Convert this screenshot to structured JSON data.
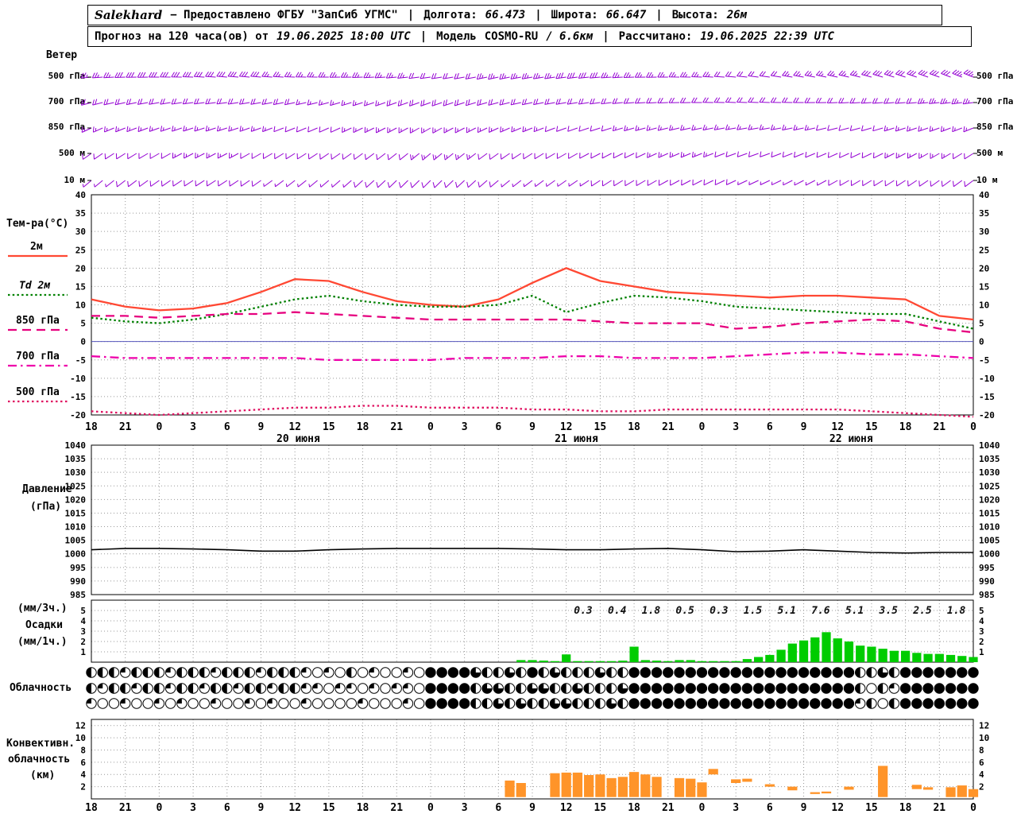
{
  "header": {
    "station": "Salekhard",
    "provider": "− Предоставлено ФГБУ \"ЗапСиб УГМС\"",
    "sep": "|",
    "lon_label": "Долгота:",
    "lon": "66.473",
    "lat_label": "Широта:",
    "lat": "66.647",
    "alt_label": "Высота:",
    "alt": "26м"
  },
  "forecast": {
    "prefix": "Прогноз на 120 часа(ов) от",
    "from": "19.06.2025 18:00 UTC",
    "sep": "|",
    "model_label": "Модель",
    "model": "COSMO-RU",
    "model_res": "/ 6.6км",
    "calc_label": "Рассчитано:",
    "calc": "19.06.2025 22:39 UTC"
  },
  "labels": {
    "wind_title": "Ветер",
    "levels": [
      "500 гПа",
      "700 гПа",
      "850 гПа",
      "500 м",
      "10 м"
    ],
    "temp_title": "Тем-ра(°C)",
    "legend": [
      "2м",
      "Td 2м",
      "850 гПа",
      "700 гПа",
      "500 гПа"
    ],
    "pressure1": "Давление",
    "pressure2": "(гПа)",
    "precip1": "(мм/3ч.)",
    "precip2": "Осадки",
    "precip3": "(мм/1ч.)",
    "cloud": "Облачность",
    "conv1": "Конвективн.",
    "conv2": "облачность",
    "conv3": "(км)"
  },
  "colors": {
    "barb": "#9400d3",
    "t2m": "#ff4833",
    "td": "#008000",
    "t850": "#e6007e",
    "t700": "#ee00aa",
    "t500": "#e01060",
    "pressure": "#000000",
    "precip": "#00cc00",
    "conv": "#ff9429",
    "grid": "#999999",
    "zero_line": "#5555bb",
    "border": "#000000"
  },
  "chart_data": {
    "x_axis": {
      "step_hours": 3,
      "total_hours": 78,
      "hours": [
        "18",
        "21",
        "0",
        "3",
        "6",
        "9",
        "12",
        "15",
        "18",
        "21",
        "0",
        "3",
        "6",
        "9",
        "12",
        "15",
        "18",
        "21",
        "0",
        "3",
        "6",
        "9",
        "12",
        "15",
        "18",
        "21",
        "0"
      ],
      "dates": [
        {
          "label": "20 июня",
          "tick": 6.1
        },
        {
          "label": "21 июня",
          "tick": 14.3
        },
        {
          "label": "22 июня",
          "tick": 22.4
        }
      ]
    },
    "panels": [
      {
        "type": "wind-barbs",
        "title": "Ветер",
        "levels": [
          {
            "label": "500 гПа",
            "dir": [
              265,
              268,
              270,
              272,
              275,
              275,
              272,
              270,
              268,
              265,
              262,
              260,
              258,
              260,
              262,
              265,
              268,
              270,
              272,
              275,
              278,
              280,
              282,
              285,
              288,
              290,
              292
            ],
            "speed": [
              14,
              15,
              15,
              16,
              16,
              15,
              14,
              14,
              13,
              13,
              12,
              12,
              13,
              14,
              15,
              15,
              14,
              13,
              13,
              12,
              12,
              13,
              14,
              15,
              16,
              17,
              18
            ]
          },
          {
            "label": "700 гПа",
            "dir": [
              255,
              258,
              260,
              262,
              262,
              260,
              258,
              255,
              252,
              250,
              250,
              252,
              255,
              258,
              260,
              262,
              265,
              268,
              270,
              272,
              272,
              270,
              268,
              266,
              265,
              264,
              262
            ],
            "speed": [
              10,
              11,
              12,
              12,
              11,
              10,
              10,
              9,
              9,
              10,
              11,
              12,
              12,
              11,
              10,
              10,
              11,
              12,
              12,
              11,
              10,
              10,
              11,
              12,
              12,
              13,
              13
            ]
          },
          {
            "label": "850 гПа",
            "dir": [
              245,
              248,
              250,
              252,
              252,
              250,
              248,
              246,
              244,
              242,
              240,
              242,
              245,
              248,
              250,
              252,
              254,
              256,
              258,
              260,
              260,
              258,
              256,
              254,
              252,
              250,
              248
            ],
            "speed": [
              8,
              8,
              9,
              9,
              8,
              8,
              7,
              7,
              8,
              8,
              9,
              9,
              8,
              8,
              7,
              7,
              8,
              8,
              9,
              9,
              8,
              8,
              7,
              7,
              8,
              8,
              9
            ]
          },
          {
            "label": "500 м",
            "dir": [
              235,
              238,
              240,
              242,
              242,
              240,
              238,
              236,
              234,
              232,
              230,
              232,
              235,
              238,
              240,
              242,
              244,
              246,
              248,
              250,
              250,
              248,
              246,
              244,
              242,
              240,
              238
            ],
            "speed": [
              6,
              7,
              7,
              8,
              8,
              7,
              6,
              6,
              7,
              7,
              8,
              8,
              7,
              6,
              6,
              7,
              7,
              8,
              8,
              7,
              6,
              6,
              7,
              7,
              8,
              8,
              7
            ]
          },
          {
            "label": "10 м",
            "dir": [
              230,
              232,
              235,
              237,
              237,
              235,
              232,
              230,
              228,
              226,
              225,
              227,
              230,
              233,
              235,
              237,
              239,
              241,
              243,
              245,
              245,
              243,
              241,
              239,
              237,
              235,
              233
            ],
            "speed": [
              4,
              5,
              5,
              6,
              6,
              5,
              4,
              4,
              5,
              5,
              6,
              6,
              5,
              4,
              4,
              5,
              5,
              6,
              6,
              5,
              4,
              4,
              5,
              5,
              6,
              6,
              5
            ]
          }
        ]
      },
      {
        "type": "line",
        "title": "Тем-ра(°C)",
        "ylim": [
          -20,
          40
        ],
        "yticks": [
          40,
          35,
          30,
          25,
          20,
          15,
          10,
          5,
          0,
          -5,
          -10,
          -15,
          -20
        ],
        "series": [
          {
            "name": "2м",
            "style": "solid",
            "values": [
              11.5,
              9.5,
              8.5,
              9,
              10.5,
              13.5,
              17,
              16.5,
              13.5,
              11,
              10,
              9.5,
              11.5,
              16,
              20,
              16.5,
              15,
              13.5,
              13,
              12.5,
              12,
              12.5,
              12.5,
              12,
              11.5,
              7,
              6
            ]
          },
          {
            "name": "Td 2м",
            "style": "dotted",
            "values": [
              6.5,
              5.5,
              5,
              6,
              7.5,
              9.5,
              11.5,
              12.5,
              11,
              10,
              9.5,
              9.5,
              10,
              12.5,
              8,
              10.5,
              12.5,
              12,
              11,
              9.5,
              9,
              8.5,
              8,
              7.5,
              7.5,
              5.5,
              3.5
            ]
          },
          {
            "name": "850 гПа",
            "style": "dash",
            "values": [
              7,
              7,
              6.5,
              7,
              7.5,
              7.5,
              8,
              7.5,
              7,
              6.5,
              6,
              6,
              6,
              6,
              6,
              5.5,
              5,
              5,
              5,
              3.5,
              4,
              5,
              5.5,
              6,
              5.5,
              3.5,
              2.5
            ]
          },
          {
            "name": "700 гПа",
            "style": "dashdot",
            "values": [
              -4,
              -4.5,
              -4.5,
              -4.5,
              -4.5,
              -4.5,
              -4.5,
              -5,
              -5,
              -5,
              -5,
              -4.5,
              -4.5,
              -4.5,
              -4,
              -4,
              -4.5,
              -4.5,
              -4.5,
              -4,
              -3.5,
              -3,
              -3,
              -3.5,
              -3.5,
              -4,
              -4.5
            ]
          },
          {
            "name": "500 гПа",
            "style": "dot",
            "values": [
              -19,
              -19.5,
              -20,
              -19.5,
              -19,
              -18.5,
              -18,
              -18,
              -17.5,
              -17.5,
              -18,
              -18,
              -18,
              -18.5,
              -18.5,
              -19,
              -19,
              -18.5,
              -18.5,
              -18.5,
              -18.5,
              -18.5,
              -18.5,
              -19,
              -19.5,
              -20,
              -20.5
            ]
          }
        ]
      },
      {
        "type": "line",
        "title": "Давление (гПа)",
        "ylim": [
          985,
          1040
        ],
        "yticks": [
          1040,
          1035,
          1030,
          1025,
          1020,
          1015,
          1010,
          1005,
          1000,
          995,
          990,
          985
        ],
        "series": [
          {
            "name": "Давление",
            "style": "solid",
            "values": [
              1001.5,
              1002,
              1002,
              1001.8,
              1001.5,
              1001,
              1001,
              1001.5,
              1001.8,
              1002,
              1002,
              1002,
              1002,
              1001.8,
              1001.5,
              1001.5,
              1001.8,
              1002,
              1001.5,
              1000.8,
              1001,
              1001.5,
              1001,
              1000.5,
              1000.3,
              1000.5,
              1000.5
            ]
          }
        ]
      },
      {
        "type": "bar",
        "title": "Осадки",
        "ylim": [
          0,
          6
        ],
        "yticks": [
          5,
          4,
          3,
          2,
          1
        ],
        "sum_3h_labels": [
          {
            "tick": 15,
            "label": "0.3"
          },
          {
            "tick": 16,
            "label": "0.4"
          },
          {
            "tick": 17,
            "label": "1.8"
          },
          {
            "tick": 18,
            "label": "0.5"
          },
          {
            "tick": 19,
            "label": "0.3"
          },
          {
            "tick": 20,
            "label": "1.5"
          },
          {
            "tick": 21,
            "label": "5.1"
          },
          {
            "tick": 22,
            "label": "7.6"
          },
          {
            "tick": 23,
            "label": "5.1"
          },
          {
            "tick": 24,
            "label": "3.5"
          },
          {
            "tick": 25,
            "label": "2.5"
          },
          {
            "tick": 26,
            "label": "1.8"
          }
        ],
        "bars": [
          {
            "h": 38,
            "v": 0.2
          },
          {
            "h": 39,
            "v": 0.2
          },
          {
            "h": 40,
            "v": 0.15
          },
          {
            "h": 41,
            "v": 0.1
          },
          {
            "h": 42,
            "v": 0.75
          },
          {
            "h": 43,
            "v": 0.1
          },
          {
            "h": 44,
            "v": 0.1
          },
          {
            "h": 45,
            "v": 0.1
          },
          {
            "h": 46,
            "v": 0.1
          },
          {
            "h": 47,
            "v": 0.15
          },
          {
            "h": 48,
            "v": 1.5
          },
          {
            "h": 49,
            "v": 0.2
          },
          {
            "h": 50,
            "v": 0.15
          },
          {
            "h": 51,
            "v": 0.1
          },
          {
            "h": 52,
            "v": 0.2
          },
          {
            "h": 53,
            "v": 0.2
          },
          {
            "h": 54,
            "v": 0.1
          },
          {
            "h": 55,
            "v": 0.1
          },
          {
            "h": 56,
            "v": 0.1
          },
          {
            "h": 57,
            "v": 0.1
          },
          {
            "h": 58,
            "v": 0.3
          },
          {
            "h": 59,
            "v": 0.5
          },
          {
            "h": 60,
            "v": 0.7
          },
          {
            "h": 61,
            "v": 1.2
          },
          {
            "h": 62,
            "v": 1.8
          },
          {
            "h": 63,
            "v": 2.1
          },
          {
            "h": 64,
            "v": 2.4
          },
          {
            "h": 65,
            "v": 2.9
          },
          {
            "h": 66,
            "v": 2.3
          },
          {
            "h": 67,
            "v": 2.0
          },
          {
            "h": 68,
            "v": 1.6
          },
          {
            "h": 69,
            "v": 1.5
          },
          {
            "h": 70,
            "v": 1.3
          },
          {
            "h": 71,
            "v": 1.1
          },
          {
            "h": 72,
            "v": 1.1
          },
          {
            "h": 73,
            "v": 0.9
          },
          {
            "h": 74,
            "v": 0.8
          },
          {
            "h": 75,
            "v": 0.8
          },
          {
            "h": 76,
            "v": 0.7
          },
          {
            "h": 77,
            "v": 0.6
          },
          {
            "h": 78,
            "v": 0.5
          }
        ]
      },
      {
        "type": "cloud-rows",
        "title": "Облачность",
        "fill_scale": "0=clear 1=quarter 2=half 3=three-quarter 4=overcast",
        "rows": [
          "2221222122212221222101020100104444322324232223224444444444444444444422324444444",
          "2122122122122122122110110101104444233223322322234444444444444444444420214444444",
          "1001001010010010100100001000104444223232233222324444444444444444444412024444444"
        ]
      },
      {
        "type": "bar-range",
        "title": "Конвективн. облачность (км)",
        "ylim": [
          0,
          13
        ],
        "yticks": [
          12,
          10,
          8,
          6,
          4,
          2
        ],
        "bars": [
          {
            "h": 37,
            "b": 0.3,
            "t": 3.0
          },
          {
            "h": 38,
            "b": 0.3,
            "t": 2.6
          },
          {
            "h": 41,
            "b": 0.3,
            "t": 4.2
          },
          {
            "h": 42,
            "b": 0.3,
            "t": 4.3
          },
          {
            "h": 43,
            "b": 0.3,
            "t": 4.3
          },
          {
            "h": 44,
            "b": 0.3,
            "t": 3.9
          },
          {
            "h": 45,
            "b": 0.3,
            "t": 4.0
          },
          {
            "h": 46,
            "b": 0.3,
            "t": 3.4
          },
          {
            "h": 47,
            "b": 0.3,
            "t": 3.6
          },
          {
            "h": 48,
            "b": 0.3,
            "t": 4.4
          },
          {
            "h": 49,
            "b": 0.3,
            "t": 4.0
          },
          {
            "h": 50,
            "b": 0.3,
            "t": 3.6
          },
          {
            "h": 52,
            "b": 0.3,
            "t": 3.4
          },
          {
            "h": 53,
            "b": 0.3,
            "t": 3.3
          },
          {
            "h": 54,
            "b": 0.3,
            "t": 2.7
          },
          {
            "h": 55,
            "b": 4.0,
            "t": 4.9
          },
          {
            "h": 57,
            "b": 2.6,
            "t": 3.2
          },
          {
            "h": 58,
            "b": 2.8,
            "t": 3.3
          },
          {
            "h": 60,
            "b": 2.0,
            "t": 2.4
          },
          {
            "h": 62,
            "b": 1.4,
            "t": 2.0
          },
          {
            "h": 64,
            "b": 0.8,
            "t": 1.1
          },
          {
            "h": 65,
            "b": 0.9,
            "t": 1.2
          },
          {
            "h": 67,
            "b": 1.5,
            "t": 2.0
          },
          {
            "h": 70,
            "b": 0.3,
            "t": 5.4
          },
          {
            "h": 73,
            "b": 1.6,
            "t": 2.3
          },
          {
            "h": 74,
            "b": 1.5,
            "t": 1.9
          },
          {
            "h": 76,
            "b": 0.3,
            "t": 1.9
          },
          {
            "h": 77,
            "b": 0.3,
            "t": 2.2
          },
          {
            "h": 78,
            "b": 0.3,
            "t": 1.6
          }
        ]
      }
    ]
  }
}
